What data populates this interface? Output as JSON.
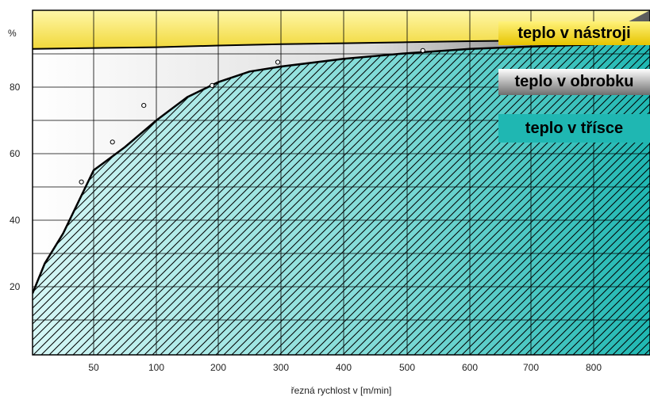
{
  "chart_data": {
    "type": "area",
    "xlabel": "řezná rychlost v [m/min]",
    "ylabel": "%",
    "x_ticks": [
      50,
      100,
      200,
      300,
      400,
      500,
      600,
      700,
      800
    ],
    "y_ticks": [
      20,
      40,
      60,
      80
    ],
    "ylim": [
      0,
      97
    ],
    "grid": true,
    "series": [
      {
        "name": "teplo v třísce",
        "color": "#1fb7b2",
        "x": [
          0,
          10,
          25,
          50,
          75,
          100,
          125,
          150,
          200,
          250,
          300,
          400,
          500,
          600,
          700,
          800
        ],
        "values": [
          18,
          27,
          36,
          55,
          62,
          70,
          73.5,
          77,
          81.5,
          84.7,
          86.2,
          88.5,
          90.2,
          91.5,
          92.2,
          92.8
        ]
      },
      {
        "name": "teplo v obrobku",
        "color": "#8a8a8a",
        "x": [
          0,
          100,
          200,
          300,
          400,
          500,
          600,
          700,
          800
        ],
        "values": [
          91.5,
          92,
          92.5,
          92.9,
          93.2,
          93.5,
          93.8,
          94,
          94.2
        ]
      },
      {
        "name": "teplo v nástroji",
        "color": "#f3dc2e",
        "x": [
          0,
          800
        ],
        "values": [
          100,
          100
        ]
      }
    ],
    "scatter_points": [
      {
        "x": 40,
        "y": 51.5
      },
      {
        "x": 65,
        "y": 63.5
      },
      {
        "x": 90,
        "y": 74.5
      },
      {
        "x": 190,
        "y": 80.5
      },
      {
        "x": 295,
        "y": 87.5
      },
      {
        "x": 525,
        "y": 91
      }
    ],
    "legend": [
      {
        "label": "teplo v nástroji",
        "color": "#f3dc2e"
      },
      {
        "label": "teplo v obrobku",
        "color": "#9a9a9a"
      },
      {
        "label": "teplo v třísce",
        "color": "#1fb7b2"
      }
    ]
  }
}
